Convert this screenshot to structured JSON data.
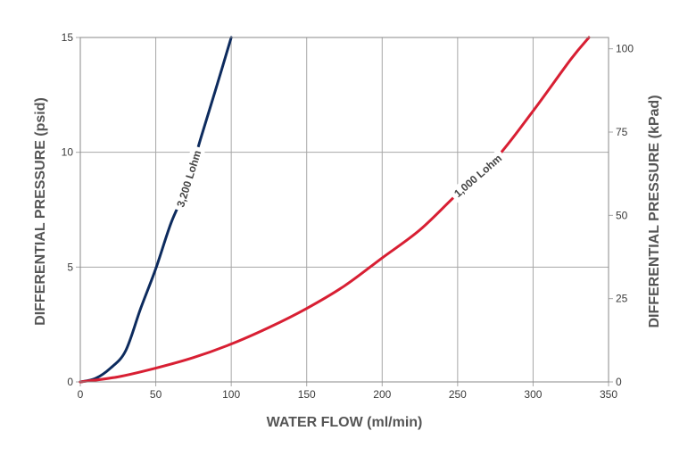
{
  "chart_data": {
    "type": "line",
    "title": "",
    "xlabel": "WATER FLOW (ml/min)",
    "ylabel": "DIFFERENTIAL PRESSURE (psid)",
    "y2label": "DIFFERENTIAL PRESSURE (kPad)",
    "xlim": [
      0,
      350
    ],
    "ylim": [
      0,
      15
    ],
    "y2lim": [
      0,
      103.4
    ],
    "x_ticks": [
      "0",
      "50",
      "100",
      "150",
      "200",
      "250",
      "300",
      "350"
    ],
    "y_ticks": [
      "0",
      "5",
      "10",
      "15"
    ],
    "y2_ticks": [
      "0",
      "25",
      "50",
      "75",
      "100"
    ],
    "grid": true,
    "series": [
      {
        "name": "3,200 Lohm",
        "color": "#0d2b5e",
        "x": [
          0,
          10,
          20,
          30,
          40,
          50,
          60,
          70,
          80,
          90,
          100
        ],
        "y": [
          0,
          0.15,
          0.6,
          1.35,
          3.2,
          4.93,
          6.9,
          8.45,
          10.65,
          12.8,
          15.0
        ]
      },
      {
        "name": "1,000 Lohm",
        "color": "#d81f33",
        "x": [
          0,
          25,
          50,
          75,
          100,
          125,
          150,
          175,
          200,
          225,
          250,
          275,
          300,
          325,
          337
        ],
        "y": [
          0,
          0.22,
          0.6,
          1.06,
          1.65,
          2.37,
          3.2,
          4.18,
          5.4,
          6.62,
          8.2,
          9.7,
          11.8,
          14.05,
          15.0
        ]
      }
    ]
  }
}
